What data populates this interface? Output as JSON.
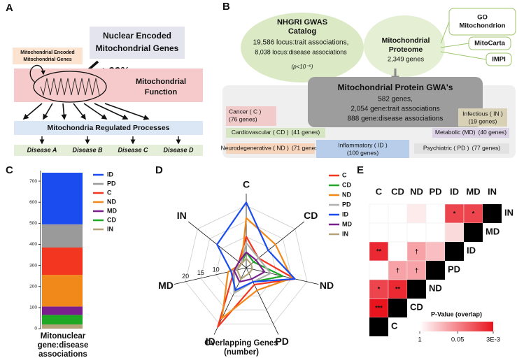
{
  "panel_labels": [
    "A",
    "B",
    "C",
    "D",
    "E"
  ],
  "panel_a": {
    "nuclear_lines": [
      "Nuclear Encoded",
      "Mitochondrial Genes"
    ],
    "nuclear_share": ">99%",
    "mito_encoded_lines": [
      "Mitochondrial Encoded",
      "Mitochondrial Genes"
    ],
    "function_lines": [
      "Mitochondrial",
      "Function"
    ],
    "processes": "Mitochondria Regulated Processes",
    "diseases": [
      "Disease A",
      "Disease B",
      "Disease C",
      "Disease D"
    ]
  },
  "panel_b": {
    "gwas_title_lines": [
      "NHGRI GWAS",
      "Catalog"
    ],
    "gwas_lines": [
      "19,586 locus:trait associations,",
      "8,038 locus:disease associations"
    ],
    "gwas_threshold": "(p<10⁻⁵)",
    "proteome_title_lines": [
      "Mitochondrial",
      "Proteome"
    ],
    "proteome_genes": "2,349 genes",
    "sources": [
      [
        "GO",
        "Mitochondrion"
      ],
      [
        "MitoCarta"
      ],
      [
        "IMPI"
      ]
    ],
    "gwa_title": "Mitochondrial Protein GWA's",
    "gwa_lines": [
      "582 genes,",
      "2,054 gene:trait associations",
      "888 gene:disease associations"
    ],
    "classes": [
      {
        "name": "Cancer ( C )",
        "genes": "(76 genes)"
      },
      {
        "name": "Infectious ( IN )",
        "genes": "(19 genes)"
      },
      {
        "name": "Cardiovascular ( CD )",
        "genes": "(41 genes)"
      },
      {
        "name": "Metabolic (MD)",
        "genes": "(40 genes)"
      },
      {
        "name": "Neurodegenerative ( ND )",
        "genes": "(71 genes)"
      },
      {
        "name": "Inflammatory ( ID )",
        "genes": "(100 genes)"
      },
      {
        "name": "Psychiatric ( PD )",
        "genes": "(77 genes)"
      }
    ]
  },
  "chart_data": [
    {
      "type": "bar",
      "stacked": true,
      "x_label_lines": [
        "Mitonuclear",
        "gene:disease",
        "associations"
      ],
      "series": [
        {
          "name": "ID",
          "color": "#1a4cf0",
          "values": [
            245
          ]
        },
        {
          "name": "PD",
          "color": "#9a9a9a",
          "values": [
            110
          ]
        },
        {
          "name": "C",
          "color": "#f2361f",
          "values": [
            130
          ]
        },
        {
          "name": "ND",
          "color": "#f0891a",
          "values": [
            150
          ]
        },
        {
          "name": "MD",
          "color": "#7b1f8e",
          "values": [
            40
          ]
        },
        {
          "name": "CD",
          "color": "#1fa824",
          "values": [
            45
          ]
        },
        {
          "name": "IN",
          "color": "#b3a27a",
          "values": [
            20
          ]
        }
      ],
      "ylim": [
        0,
        750
      ],
      "yticks": [
        0,
        100,
        200,
        300,
        400,
        500,
        600,
        700
      ]
    },
    {
      "type": "radar",
      "categories": [
        "C",
        "CD",
        "ND",
        "PD",
        "ID",
        "MD",
        "IN"
      ],
      "x_label_lines": [
        "Overlapping Genes",
        "(number)"
      ],
      "rlim": [
        0,
        22
      ],
      "rticks": [
        10,
        15,
        20
      ],
      "grid": true,
      "series": [
        {
          "name": "C",
          "color": "#f2361f",
          "values": [
            10,
            5,
            16,
            6,
            21,
            4,
            3
          ]
        },
        {
          "name": "CD",
          "color": "#1fa824",
          "values": [
            5,
            3,
            12,
            5,
            9,
            4,
            2
          ]
        },
        {
          "name": "ND",
          "color": "#f0891a",
          "values": [
            16,
            12,
            15,
            8,
            18,
            6,
            2
          ]
        },
        {
          "name": "PD",
          "color": "#b0b0b0",
          "values": [
            8,
            5,
            8,
            5,
            9,
            4,
            2
          ]
        },
        {
          "name": "ID",
          "color": "#1a4cf0",
          "values": [
            21,
            9,
            16,
            5,
            8,
            5,
            12
          ]
        },
        {
          "name": "MD",
          "color": "#7b1f8e",
          "values": [
            5,
            4,
            6,
            4,
            5,
            4,
            3
          ]
        },
        {
          "name": "IN",
          "color": "#b3a27a",
          "values": [
            3,
            2,
            2,
            2,
            4,
            3,
            2
          ]
        }
      ]
    },
    {
      "type": "heatmap",
      "x": [
        "C",
        "CD",
        "ND",
        "PD",
        "ID",
        "MD",
        "IN"
      ],
      "y": [
        "IN",
        "MD",
        "ID",
        "PD",
        "ND",
        "CD",
        "C"
      ],
      "values": [
        [
          1,
          1,
          0.6,
          1,
          0.01,
          0.01
        ],
        [
          1,
          1,
          1,
          1,
          0.4
        ],
        [
          0.005,
          1,
          0.1,
          0.2
        ],
        [
          1,
          0.1,
          0.1
        ],
        [
          0.01,
          0.005
        ],
        [
          0.003
        ],
        []
      ],
      "cell_labels": [
        [
          null,
          null,
          null,
          null,
          "*",
          "*"
        ],
        [
          null,
          null,
          null,
          null,
          null
        ],
        [
          "**",
          null,
          "†",
          null
        ],
        [
          null,
          "†",
          "†"
        ],
        [
          "*",
          "**"
        ],
        [
          "***"
        ],
        []
      ],
      "log_scale": true,
      "color": "#e8141e",
      "legend_title": "P-Value (overlap)",
      "clim": [
        1,
        0.003
      ],
      "cticks": [
        1,
        0.05,
        {
          "value": 0.003,
          "label": "3E-3"
        }
      ]
    }
  ]
}
